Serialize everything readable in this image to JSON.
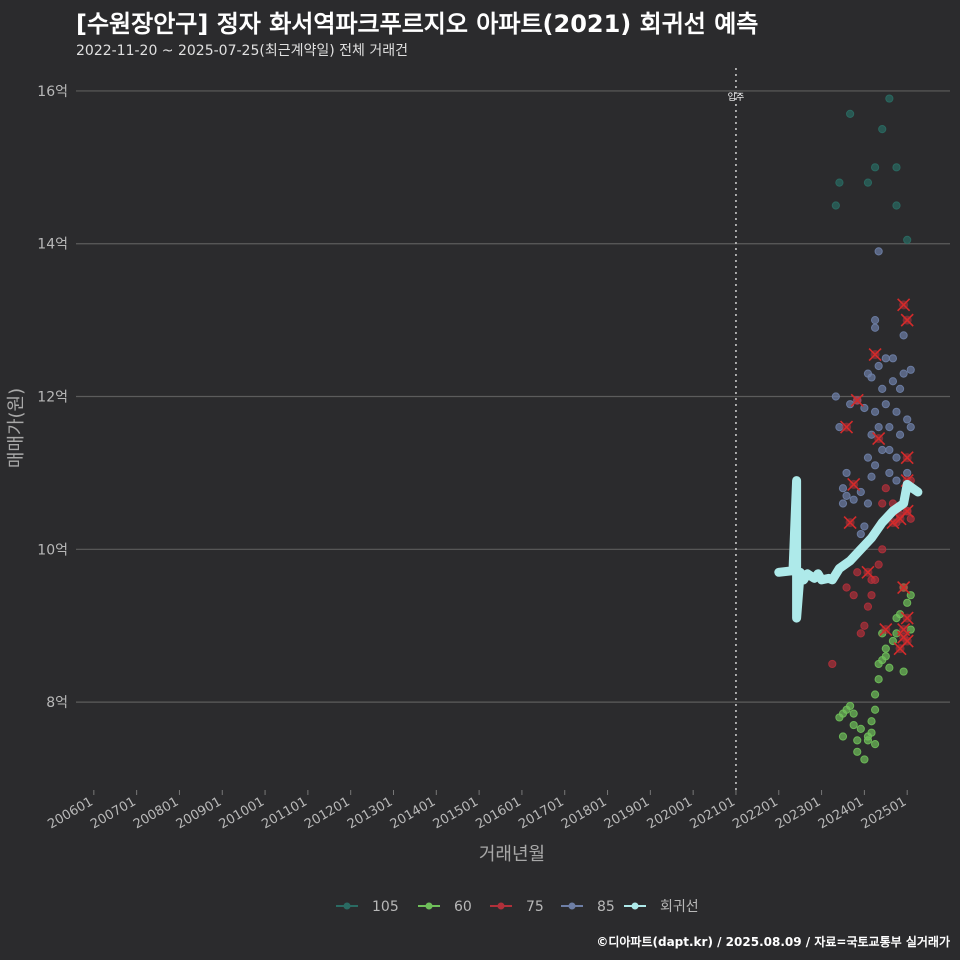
{
  "header": {
    "title": "[수원장안구] 정자 화서역파크푸르지오 아파트(2021) 회귀선 예측",
    "subtitle": "2022-11-20 ~ 2025-07-25(최근계약일) 전체 거래건"
  },
  "footer": {
    "credit": "©디아파트(dapt.kr) / 2025.08.09 / 자료=국토교통부 실거래가"
  },
  "colors": {
    "background": "#2b2b2d",
    "grid": "#5c5c5c",
    "s105": "#2a6b63",
    "s60": "#6fbf5a",
    "s75": "#b0303a",
    "s85": "#6e7fa6",
    "regression": "#aeeaea",
    "cancel": "#d42a2a"
  },
  "chart_data": {
    "type": "scatter",
    "title": "[수원장안구] 정자 화서역파크푸르지오 아파트(2021) 회귀선 예측",
    "xlabel": "거래년월",
    "ylabel": "매매가(원)",
    "x_range": [
      "2005-08",
      "2026-01"
    ],
    "ylim": [
      6.85,
      16.3
    ],
    "x_ticks": [
      "200601",
      "200701",
      "200801",
      "200901",
      "201001",
      "201101",
      "201201",
      "201301",
      "201401",
      "201501",
      "201601",
      "201701",
      "201801",
      "201901",
      "202001",
      "202101",
      "202201",
      "202301",
      "202401",
      "202501"
    ],
    "y_ticks": [
      8,
      10,
      12,
      14,
      16
    ],
    "y_tick_labels": [
      "8억",
      "10억",
      "12억",
      "14억",
      "16억"
    ],
    "move_in": {
      "date": "2021-01",
      "label": "입주"
    },
    "legend_position": "bottom",
    "legend": [
      "105",
      "60",
      "75",
      "85",
      "회귀선"
    ],
    "series": [
      {
        "name": "105",
        "points": [
          [
            "2023-05",
            14.5
          ],
          [
            "2023-06",
            14.8
          ],
          [
            "2023-09",
            15.7
          ],
          [
            "2024-02",
            14.8
          ],
          [
            "2024-04",
            15.0
          ],
          [
            "2024-06",
            15.5
          ],
          [
            "2024-08",
            15.9
          ],
          [
            "2024-10",
            15.0
          ],
          [
            "2024-10",
            14.5
          ],
          [
            "2025-01",
            14.05
          ]
        ]
      },
      {
        "name": "60",
        "points": [
          [
            "2023-06",
            7.8
          ],
          [
            "2023-07",
            7.85
          ],
          [
            "2023-08",
            7.9
          ],
          [
            "2023-09",
            7.95
          ],
          [
            "2023-10",
            7.85
          ],
          [
            "2023-10",
            7.7
          ],
          [
            "2023-11",
            7.5
          ],
          [
            "2023-12",
            7.65
          ],
          [
            "2024-01",
            7.25
          ],
          [
            "2024-02",
            7.55
          ],
          [
            "2024-03",
            7.75
          ],
          [
            "2024-03",
            7.6
          ],
          [
            "2024-04",
            7.45
          ],
          [
            "2024-04",
            7.9
          ],
          [
            "2024-04",
            8.1
          ],
          [
            "2024-05",
            8.5
          ],
          [
            "2024-05",
            8.3
          ],
          [
            "2024-06",
            8.9
          ],
          [
            "2024-06",
            8.55
          ],
          [
            "2024-07",
            8.6
          ],
          [
            "2024-08",
            8.45
          ],
          [
            "2024-09",
            8.8
          ],
          [
            "2024-10",
            9.1
          ],
          [
            "2024-10",
            8.9
          ],
          [
            "2024-11",
            9.15
          ],
          [
            "2024-12",
            9.5
          ],
          [
            "2024-12",
            8.4
          ],
          [
            "2025-01",
            9.3
          ],
          [
            "2025-02",
            9.4
          ],
          [
            "2025-02",
            8.95
          ],
          [
            "2023-07",
            7.55
          ],
          [
            "2023-11",
            7.35
          ],
          [
            "2024-02",
            7.5
          ],
          [
            "2024-07",
            8.7
          ]
        ]
      },
      {
        "name": "75",
        "points": [
          [
            "2023-04",
            8.5
          ],
          [
            "2023-08",
            9.5
          ],
          [
            "2023-09",
            9.85
          ],
          [
            "2023-10",
            9.4
          ],
          [
            "2023-11",
            9.7
          ],
          [
            "2024-01",
            9.0
          ],
          [
            "2024-02",
            9.25
          ],
          [
            "2024-03",
            9.4
          ],
          [
            "2024-04",
            9.6
          ],
          [
            "2024-05",
            9.8
          ],
          [
            "2024-06",
            10.6
          ],
          [
            "2024-06",
            10.0
          ],
          [
            "2024-07",
            10.8
          ],
          [
            "2024-08",
            10.45
          ],
          [
            "2024-09",
            10.6
          ],
          [
            "2024-10",
            10.35
          ],
          [
            "2024-11",
            10.45
          ],
          [
            "2025-01",
            10.5
          ],
          [
            "2025-02",
            10.9
          ],
          [
            "2025-02",
            10.4
          ],
          [
            "2023-12",
            8.9
          ],
          [
            "2024-03",
            9.6
          ]
        ]
      },
      {
        "name": "85",
        "points": [
          [
            "2023-05",
            12.0
          ],
          [
            "2023-06",
            11.6
          ],
          [
            "2023-07",
            10.8
          ],
          [
            "2023-07",
            10.6
          ],
          [
            "2023-08",
            11.0
          ],
          [
            "2023-08",
            10.7
          ],
          [
            "2023-09",
            11.9
          ],
          [
            "2023-10",
            10.65
          ],
          [
            "2023-11",
            11.95
          ],
          [
            "2023-12",
            10.75
          ],
          [
            "2024-01",
            10.3
          ],
          [
            "2024-01",
            11.85
          ],
          [
            "2024-02",
            11.2
          ],
          [
            "2024-02",
            12.3
          ],
          [
            "2024-03",
            11.5
          ],
          [
            "2024-03",
            12.25
          ],
          [
            "2024-04",
            11.1
          ],
          [
            "2024-04",
            11.8
          ],
          [
            "2024-04",
            12.9
          ],
          [
            "2024-04",
            13.0
          ],
          [
            "2024-05",
            12.4
          ],
          [
            "2024-05",
            11.6
          ],
          [
            "2024-06",
            11.3
          ],
          [
            "2024-06",
            12.1
          ],
          [
            "2024-07",
            12.5
          ],
          [
            "2024-07",
            11.9
          ],
          [
            "2024-08",
            11.6
          ],
          [
            "2024-08",
            11.3
          ],
          [
            "2024-09",
            12.2
          ],
          [
            "2024-09",
            12.5
          ],
          [
            "2024-10",
            11.8
          ],
          [
            "2024-10",
            11.2
          ],
          [
            "2024-10",
            10.9
          ],
          [
            "2024-11",
            12.1
          ],
          [
            "2024-11",
            11.5
          ],
          [
            "2024-12",
            12.8
          ],
          [
            "2024-12",
            12.3
          ],
          [
            "2025-01",
            11.7
          ],
          [
            "2025-01",
            11.0
          ],
          [
            "2025-02",
            12.35
          ],
          [
            "2025-02",
            11.6
          ],
          [
            "2024-05",
            13.9
          ],
          [
            "2024-02",
            10.6
          ],
          [
            "2024-03",
            10.95
          ],
          [
            "2023-12",
            10.2
          ],
          [
            "2024-08",
            11.0
          ]
        ]
      }
    ],
    "cancelled": [
      [
        "2023-08",
        11.6
      ],
      [
        "2023-09",
        10.35
      ],
      [
        "2023-10",
        10.85
      ],
      [
        "2023-11",
        11.95
      ],
      [
        "2024-02",
        9.7
      ],
      [
        "2024-04",
        12.55
      ],
      [
        "2024-05",
        11.45
      ],
      [
        "2024-07",
        8.95
      ],
      [
        "2024-09",
        10.35
      ],
      [
        "2024-11",
        10.4
      ],
      [
        "2024-12",
        13.2
      ],
      [
        "2025-01",
        13.0
      ],
      [
        "2025-01",
        11.2
      ],
      [
        "2025-01",
        10.9
      ],
      [
        "2025-01",
        10.5
      ],
      [
        "2024-12",
        9.5
      ],
      [
        "2024-12",
        8.85
      ],
      [
        "2025-01",
        8.8
      ],
      [
        "2024-11",
        8.7
      ],
      [
        "2025-01",
        9.1
      ],
      [
        "2024-12",
        8.95
      ]
    ],
    "regression": [
      [
        "2022-01",
        9.7
      ],
      [
        "2022-05",
        9.72
      ],
      [
        "2022-06",
        10.9
      ],
      [
        "2022-06",
        9.1
      ],
      [
        "2022-07",
        9.7
      ],
      [
        "2022-08",
        9.6
      ],
      [
        "2022-09",
        9.68
      ],
      [
        "2022-11",
        9.62
      ],
      [
        "2022-12",
        9.68
      ],
      [
        "2023-01",
        9.6
      ],
      [
        "2023-03",
        9.62
      ],
      [
        "2023-04",
        9.6
      ],
      [
        "2023-06",
        9.75
      ],
      [
        "2023-09",
        9.85
      ],
      [
        "2023-12",
        10.0
      ],
      [
        "2024-03",
        10.15
      ],
      [
        "2024-06",
        10.35
      ],
      [
        "2024-09",
        10.5
      ],
      [
        "2024-12",
        10.6
      ],
      [
        "2025-01",
        10.85
      ],
      [
        "2025-04",
        10.75
      ]
    ]
  }
}
